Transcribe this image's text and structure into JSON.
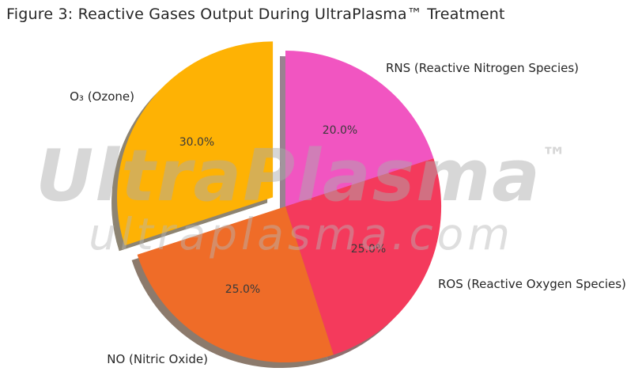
{
  "figure": {
    "title": "Figure 3: Reactive Gases Output During UltraPlasma™ Treatment"
  },
  "watermark": {
    "brand": "UltraPlasma",
    "tm": "™",
    "domain_text": "ultraplasma.com"
  },
  "chart_data": {
    "type": "pie",
    "title": "Figure 3: Reactive Gases Output During UltraPlasma™ Treatment",
    "start_angle_deg": 90,
    "direction": "clockwise",
    "legend": "none",
    "shadow": true,
    "slices": [
      {
        "id": "rns",
        "label": "RNS (Reactive Nitrogen Species)",
        "value": 20.0,
        "pct_label": "20.0%",
        "color": "#F155C1",
        "shadow_color": "#9A8191",
        "explode": 0.0
      },
      {
        "id": "ros",
        "label": "ROS (Reactive Oxygen Species)",
        "value": 25.0,
        "pct_label": "25.0%",
        "color": "#F43A5C",
        "shadow_color": "#8E6F6F",
        "explode": 0.0
      },
      {
        "id": "no",
        "label": "NO (Nitric Oxide)",
        "value": 25.0,
        "pct_label": "25.0%",
        "color": "#EF6C28",
        "shadow_color": "#8C7A6C",
        "explode": 0.0
      },
      {
        "id": "o3",
        "label": "O₃ (Ozone)",
        "value": 30.0,
        "pct_label": "30.0%",
        "color": "#FEB204",
        "shadow_color": "#8D8472",
        "explode": 0.1
      }
    ],
    "label_color": "#262626",
    "pct_color": "#3a3a3a"
  }
}
